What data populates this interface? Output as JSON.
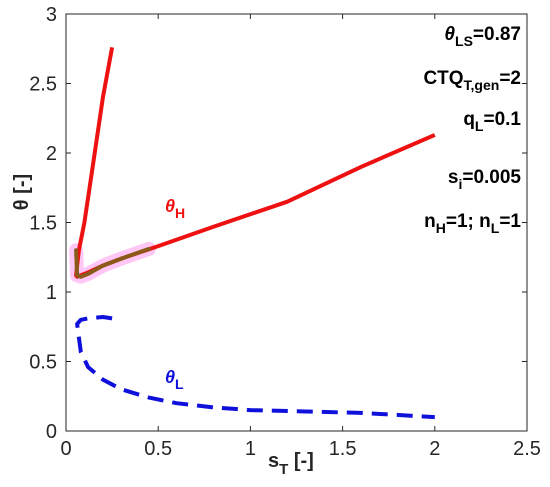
{
  "chart_data": {
    "type": "line",
    "xlabel": {
      "main": "s",
      "sub": "T",
      "unit": " [-]"
    },
    "ylabel": "θ [-]",
    "xlim": [
      0,
      2.5
    ],
    "ylim": [
      0,
      3
    ],
    "xticks": [
      "0",
      "0.5",
      "1",
      "1.5",
      "2",
      "2.5"
    ],
    "xtick_values": [
      0,
      0.5,
      1,
      1.5,
      2,
      2.5
    ],
    "yticks": [
      "0",
      "0.5",
      "1",
      "1.5",
      "2",
      "2.5",
      "3"
    ],
    "ytick_values": [
      0,
      0.5,
      1,
      1.5,
      2,
      2.5,
      3
    ],
    "grid": false,
    "annotations": [
      {
        "main": "θ",
        "sub": "LS",
        "rest": "=0.87"
      },
      {
        "main": "CTQ",
        "sub": "T,gen",
        "rest": "=2"
      },
      {
        "main": "q",
        "sub": "L",
        "rest": "=0.1"
      },
      {
        "main": "s",
        "sub": "i",
        "rest": "=0.005"
      },
      {
        "main": "n",
        "sub": "H",
        "rest": "=1; n",
        "sub2": "L",
        "rest2": "=1"
      }
    ],
    "series": [
      {
        "label": {
          "main": "θ",
          "sub": "H"
        },
        "color": "#ee1111",
        "style": "solid",
        "x": [
          0.25,
          0.2,
          0.15,
          0.1,
          0.07,
          0.06,
          0.055,
          0.06,
          0.08,
          0.12,
          0.2,
          0.3,
          0.5,
          0.8,
          1.2,
          1.6,
          2.0
        ],
        "y": [
          2.76,
          2.4,
          1.95,
          1.5,
          1.3,
          1.19,
          1.12,
          1.11,
          1.12,
          1.14,
          1.19,
          1.24,
          1.33,
          1.47,
          1.65,
          1.9,
          2.13
        ]
      },
      {
        "label": {
          "main": "θ",
          "sub": "L"
        },
        "color": "#1010dd",
        "style": "dashed",
        "x": [
          0.25,
          0.2,
          0.12,
          0.08,
          0.06,
          0.08,
          0.12,
          0.2,
          0.3,
          0.45,
          0.6,
          0.8,
          1.0,
          1.3,
          1.6,
          2.0
        ],
        "y": [
          0.81,
          0.82,
          0.81,
          0.8,
          0.77,
          0.57,
          0.46,
          0.37,
          0.3,
          0.24,
          0.2,
          0.17,
          0.15,
          0.14,
          0.13,
          0.1
        ]
      }
    ],
    "highlight": {
      "color": "#8a5a1a",
      "x": [
        0.055,
        0.06,
        0.08,
        0.12,
        0.2,
        0.3,
        0.45
      ],
      "y": [
        1.3,
        1.12,
        1.11,
        1.13,
        1.19,
        1.24,
        1.31
      ]
    }
  }
}
